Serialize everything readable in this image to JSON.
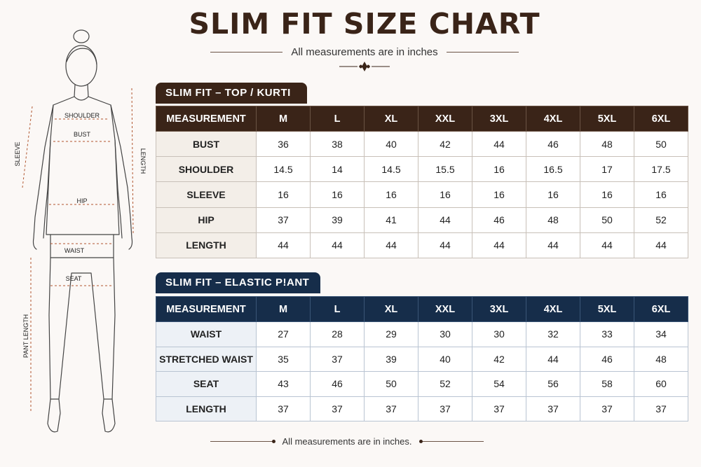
{
  "page": {
    "title": "SLIM FIT SIZE CHART",
    "subtitle": "All measurements are in inches",
    "footer": "All measurements are in inches."
  },
  "colors": {
    "brown": "#3a2418",
    "navy": "#162d4a",
    "background": "#fbf8f6",
    "guide_line": "#b0552e"
  },
  "figure": {
    "labels": {
      "shoulder": "SHOULDER",
      "bust": "BUST",
      "sleeve": "SLEEVE",
      "length": "LENGTH",
      "hip": "HIP",
      "waist": "WAIST",
      "seat": "SEAT",
      "pant_length": "PANT LENGTH"
    }
  },
  "top_table": {
    "section_title": "SLIM FIT – TOP / KURTI",
    "header": [
      "MEASUREMENT",
      "M",
      "L",
      "XL",
      "XXL",
      "3XL",
      "4XL",
      "5XL",
      "6XL"
    ],
    "rows": [
      {
        "label": "BUST",
        "values": [
          "36",
          "38",
          "40",
          "42",
          "44",
          "46",
          "48",
          "50"
        ]
      },
      {
        "label": "SHOULDER",
        "values": [
          "14.5",
          "14",
          "14.5",
          "15.5",
          "16",
          "16.5",
          "17",
          "17.5"
        ]
      },
      {
        "label": "SLEEVE",
        "values": [
          "16",
          "16",
          "16",
          "16",
          "16",
          "16",
          "16",
          "16"
        ]
      },
      {
        "label": "HIP",
        "values": [
          "37",
          "39",
          "41",
          "44",
          "46",
          "48",
          "50",
          "52"
        ]
      },
      {
        "label": "LENGTH",
        "values": [
          "44",
          "44",
          "44",
          "44",
          "44",
          "44",
          "44",
          "44"
        ]
      }
    ]
  },
  "pant_table": {
    "section_title": "SLIM FIT – ELASTIC P!ANT",
    "header": [
      "MEASUREMENT",
      "M",
      "L",
      "XL",
      "XXL",
      "3XL",
      "4XL",
      "5XL",
      "6XL"
    ],
    "rows": [
      {
        "label": "WAIST",
        "values": [
          "27",
          "28",
          "29",
          "30",
          "30",
          "32",
          "33",
          "34"
        ]
      },
      {
        "label": "STRETCHED WAIST",
        "values": [
          "35",
          "37",
          "39",
          "40",
          "42",
          "44",
          "46",
          "48"
        ]
      },
      {
        "label": "SEAT",
        "values": [
          "43",
          "46",
          "50",
          "52",
          "54",
          "56",
          "58",
          "60"
        ]
      },
      {
        "label": "LENGTH",
        "values": [
          "37",
          "37",
          "37",
          "37",
          "37",
          "37",
          "37",
          "37"
        ]
      }
    ]
  }
}
